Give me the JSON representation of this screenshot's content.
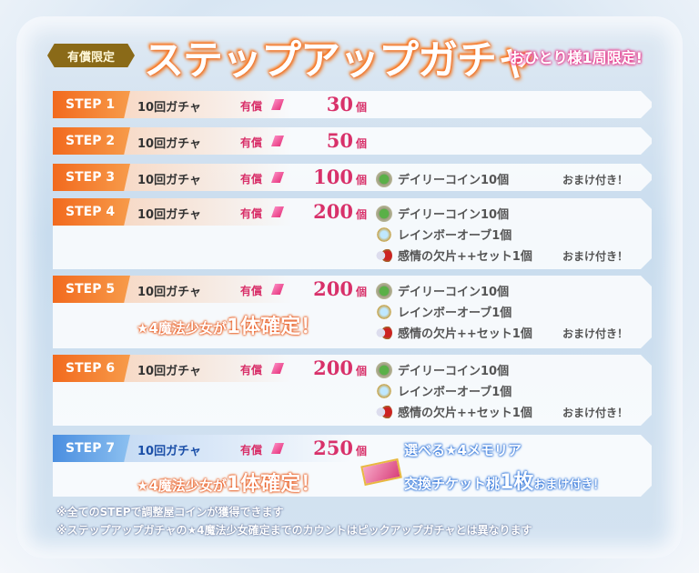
{
  "header": {
    "badge": "有償限定",
    "title": "ステップアップガチャ",
    "limit": "おひとり様1周限定!"
  },
  "steps": [
    {
      "label": "STEP 1",
      "gacha": "10回ガチャ",
      "paid": "有償",
      "amount": "30",
      "unit": "個"
    },
    {
      "label": "STEP 2",
      "gacha": "10回ガチャ",
      "paid": "有償",
      "amount": "50",
      "unit": "個"
    },
    {
      "label": "STEP 3",
      "gacha": "10回ガチャ",
      "paid": "有償",
      "amount": "100",
      "unit": "個",
      "bonus": [
        "デイリーコイン10個"
      ],
      "omake": "おまけ付き！"
    },
    {
      "label": "STEP 4",
      "gacha": "10回ガチャ",
      "paid": "有償",
      "amount": "200",
      "unit": "個",
      "bonus": [
        "デイリーコイン10個",
        "レインボーオーブ1個",
        "感情の欠片++セット1個"
      ],
      "omake": "おまけ付き！"
    },
    {
      "label": "STEP 5",
      "gacha": "10回ガチャ",
      "paid": "有償",
      "amount": "200",
      "unit": "個",
      "bonus": [
        "デイリーコイン10個",
        "レインボーオーブ1個",
        "感情の欠片++セット1個"
      ],
      "omake": "おまけ付き！",
      "guarantee_a": "★4魔法少女が",
      "guarantee_b": "1体確定！"
    },
    {
      "label": "STEP 6",
      "gacha": "10回ガチャ",
      "paid": "有償",
      "amount": "200",
      "unit": "個",
      "bonus": [
        "デイリーコイン10個",
        "レインボーオーブ1個",
        "感情の欠片++セット1個"
      ],
      "omake": "おまけ付き！"
    },
    {
      "label": "STEP 7",
      "gacha": "10回ガチャ",
      "paid": "有償",
      "amount": "250",
      "unit": "個",
      "guarantee_a": "★4魔法少女が",
      "guarantee_b": "1体確定！",
      "memoria_1": "選べる★4メモリア",
      "memoria_2a": "交換チケット桃",
      "memoria_2b": "1枚",
      "memoria_2c": "おまけ付き！"
    }
  ],
  "notes": [
    "※全てのSTEPで調整屋コインが獲得できます",
    "※ステップアップガチャの★4魔法少女確定までのカウントはピックアップガチャとは異なります"
  ],
  "colors": {
    "step_tab": "#f26a1e",
    "step7_tab": "#4a8ee0",
    "price": "#d8316a"
  }
}
